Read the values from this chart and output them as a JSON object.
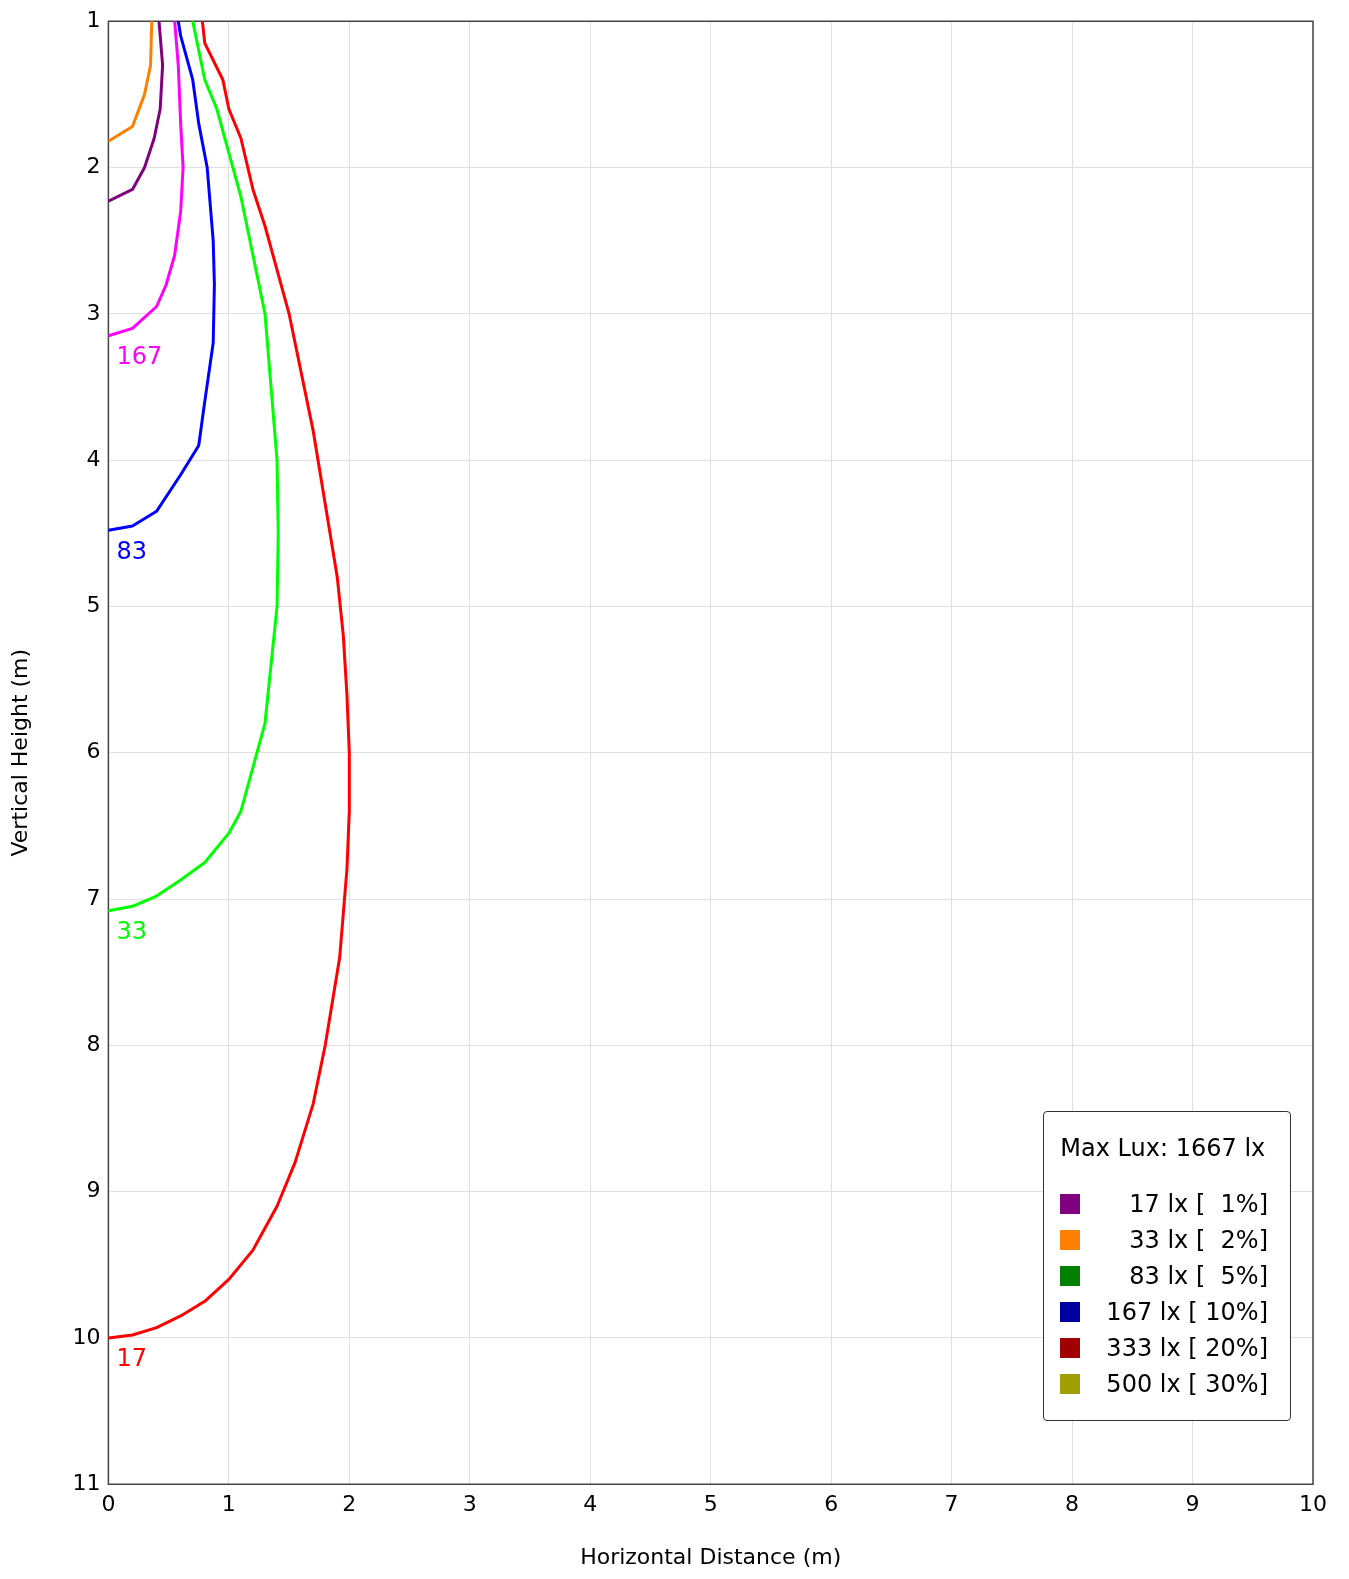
{
  "chart_data": {
    "type": "line",
    "xlabel": "Horizontal Distance (m)",
    "ylabel": "Vertical Height (m)",
    "legend_title": "Max Lux: 1667 lx",
    "legend": "bottom right",
    "grid": true,
    "marker": "none",
    "line_style": "solid",
    "xlim": [
      0,
      10
    ],
    "xticks": [
      0,
      1,
      2,
      3,
      4,
      5,
      6,
      7,
      8,
      9,
      10
    ],
    "ylim": [
      11,
      1
    ],
    "yticks": [
      1,
      2,
      3,
      4,
      5,
      6,
      7,
      8,
      9,
      10,
      11
    ],
    "series": [
      {
        "name": "17",
        "color": "#ff0000",
        "x": [
          0.78,
          0.8,
          0.95,
          1.0,
          1.1,
          1.2,
          1.3,
          1.4,
          1.5,
          1.6,
          1.7,
          1.8,
          1.9,
          1.95,
          1.98,
          2.0,
          2.0,
          1.98,
          1.92,
          1.8,
          1.7,
          1.55,
          1.4,
          1.2,
          1.0,
          0.8,
          0.6,
          0.4,
          0.2,
          0
        ],
        "values": [
          1.0,
          1.15,
          1.4,
          1.6,
          1.8,
          2.15,
          2.4,
          2.7,
          3.0,
          3.4,
          3.8,
          4.3,
          4.8,
          5.2,
          5.6,
          6.0,
          6.4,
          6.8,
          7.4,
          8.0,
          8.4,
          8.8,
          9.1,
          9.4,
          9.6,
          9.75,
          9.85,
          9.93,
          9.98,
          10.0
        ]
      },
      {
        "name": "33",
        "color": "#00ff00",
        "x": [
          0.7,
          0.8,
          0.9,
          1.0,
          1.1,
          1.2,
          1.3,
          1.35,
          1.4,
          1.41,
          1.4,
          1.35,
          1.3,
          1.2,
          1.1,
          1.0,
          0.8,
          0.6,
          0.4,
          0.2,
          0
        ],
        "values": [
          1.0,
          1.4,
          1.6,
          1.9,
          2.2,
          2.6,
          3.0,
          3.5,
          4.0,
          4.5,
          5.0,
          5.4,
          5.8,
          6.1,
          6.4,
          6.55,
          6.75,
          6.87,
          6.98,
          7.05,
          7.08
        ]
      },
      {
        "name": "83",
        "color": "#0000ff",
        "x": [
          0.58,
          0.6,
          0.7,
          0.75,
          0.82,
          0.87,
          0.88,
          0.87,
          0.8,
          0.75,
          0.6,
          0.4,
          0.2,
          0
        ],
        "values": [
          1.0,
          1.1,
          1.4,
          1.7,
          2.0,
          2.5,
          2.8,
          3.2,
          3.6,
          3.9,
          4.1,
          4.35,
          4.45,
          4.48
        ]
      },
      {
        "name": "167",
        "color": "#ff00ff",
        "x": [
          0.55,
          0.58,
          0.6,
          0.62,
          0.6,
          0.55,
          0.48,
          0.4,
          0.2,
          0
        ],
        "values": [
          1.0,
          1.3,
          1.7,
          2.0,
          2.3,
          2.6,
          2.8,
          2.95,
          3.1,
          3.15
        ]
      },
      {
        "color": "#800080",
        "x": [
          0.42,
          0.45,
          0.43,
          0.38,
          0.3,
          0.2,
          0
        ],
        "values": [
          1.0,
          1.3,
          1.6,
          1.8,
          2.0,
          2.15,
          2.23
        ]
      },
      {
        "color": "#ff8000",
        "x": [
          0.36,
          0.35,
          0.3,
          0.2,
          0
        ],
        "values": [
          1.0,
          1.3,
          1.5,
          1.72,
          1.82
        ]
      },
      {
        "name": "17 lx [  1%]",
        "color": "#800080",
        "values": [
          null
        ]
      },
      {
        "name": "33 lx [  2%]",
        "color": "#ff8000",
        "values": [
          null
        ]
      },
      {
        "name": "83 lx [  5%]",
        "color": "#008000",
        "values": [
          null
        ]
      },
      {
        "name": "167 lx [ 10%]",
        "color": "#0000a0",
        "values": [
          null
        ]
      },
      {
        "name": "333 lx [ 20%]",
        "color": "#a00000",
        "values": [
          null
        ]
      },
      {
        "name": "500 lx [ 30%]",
        "color": "#a0a000",
        "values": [
          null
        ]
      }
    ]
  }
}
